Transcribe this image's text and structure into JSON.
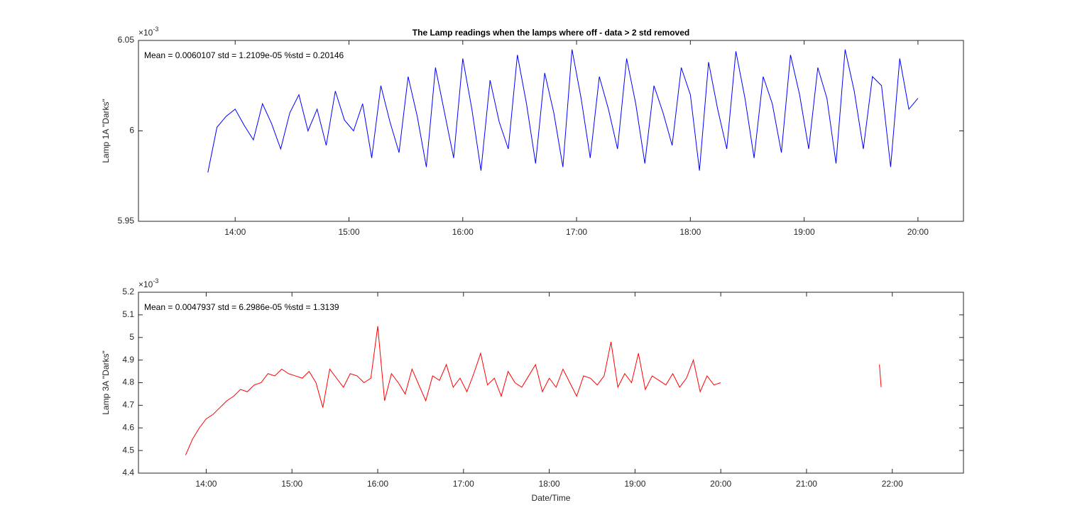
{
  "chart_data": [
    {
      "type": "line",
      "title": "The Lamp readings when the lamps where off - data > 2 std removed",
      "annotation": "Mean = 0.0060107  std = 1.2109e-05  %std = 0.20146",
      "y_label": "Lamp 1A \"Darks\"",
      "y_multiplier": {
        "base": "×10",
        "exponent": "-3"
      },
      "x": [
        13.76,
        13.84,
        13.92,
        14,
        14.08,
        14.16,
        14.24,
        14.32,
        14.4,
        14.48,
        14.56,
        14.64,
        14.72,
        14.8,
        14.88,
        14.96,
        15.04,
        15.12,
        15.2,
        15.28,
        15.36,
        15.44,
        15.52,
        15.6,
        15.68,
        15.76,
        15.84,
        15.92,
        16,
        16.08,
        16.16,
        16.24,
        16.32,
        16.4,
        16.48,
        16.56,
        16.64,
        16.72,
        16.8,
        16.88,
        16.96,
        17.04,
        17.12,
        17.2,
        17.28,
        17.36,
        17.44,
        17.52,
        17.6,
        17.68,
        17.76,
        17.84,
        17.92,
        18,
        18.08,
        18.16,
        18.24,
        18.32,
        18.4,
        18.48,
        18.56,
        18.64,
        18.72,
        18.8,
        18.88,
        18.96,
        19.04,
        19.12,
        19.2,
        19.28,
        19.36,
        19.44,
        19.52,
        19.6,
        19.68,
        19.76,
        19.84,
        19.92,
        20
      ],
      "series": [
        {
          "color": "#0000ff",
          "values": [
            5.977,
            6.002,
            6.008,
            6.012,
            6.003,
            5.995,
            6.015,
            6.004,
            5.99,
            6.01,
            6.02,
            6.0,
            6.012,
            5.992,
            6.022,
            6.006,
            6.0,
            6.015,
            5.985,
            6.025,
            6.005,
            5.988,
            6.03,
            6.008,
            5.98,
            6.035,
            6.01,
            5.985,
            6.04,
            6.012,
            5.978,
            6.028,
            6.005,
            5.99,
            6.042,
            6.015,
            5.982,
            6.032,
            6.01,
            5.98,
            6.045,
            6.018,
            5.985,
            6.03,
            6.012,
            5.99,
            6.04,
            6.015,
            5.982,
            6.025,
            6.01,
            5.992,
            6.035,
            6.02,
            5.978,
            6.038,
            6.012,
            5.99,
            6.044,
            6.018,
            5.985,
            6.03,
            6.015,
            5.988,
            6.042,
            6.02,
            5.99,
            6.035,
            6.018,
            5.982,
            6.045,
            6.022,
            5.99,
            6.03,
            6.025,
            5.98,
            6.04,
            6.012,
            6.018
          ]
        }
      ],
      "xlim": [
        13.15,
        20.4
      ],
      "xticks": [
        {
          "value": 14,
          "label": "14:00"
        },
        {
          "value": 15,
          "label": "15:00"
        },
        {
          "value": 16,
          "label": "16:00"
        },
        {
          "value": 17,
          "label": "17:00"
        },
        {
          "value": 18,
          "label": "18:00"
        },
        {
          "value": 19,
          "label": "19:00"
        },
        {
          "value": 20,
          "label": "20:00"
        }
      ],
      "ylim": [
        5.95,
        6.05
      ],
      "yticks": [
        5.95,
        6,
        6.05
      ],
      "grid": false
    },
    {
      "type": "line",
      "annotation": "Mean = 0.0047937  std = 6.2986e-05  %std = 1.3139",
      "y_label": "Lamp 3A \"Darks\"",
      "x_label": "Date/Time",
      "y_multiplier": {
        "base": "×10",
        "exponent": "-3"
      },
      "x": [
        13.76,
        13.84,
        13.92,
        14,
        14.08,
        14.16,
        14.24,
        14.32,
        14.4,
        14.48,
        14.56,
        14.64,
        14.72,
        14.8,
        14.88,
        14.96,
        15.04,
        15.12,
        15.2,
        15.28,
        15.36,
        15.44,
        15.52,
        15.6,
        15.68,
        15.76,
        15.84,
        15.92,
        16,
        16.08,
        16.16,
        16.24,
        16.32,
        16.4,
        16.48,
        16.56,
        16.64,
        16.72,
        16.8,
        16.88,
        16.96,
        17.04,
        17.12,
        17.2,
        17.28,
        17.36,
        17.44,
        17.52,
        17.6,
        17.68,
        17.76,
        17.84,
        17.92,
        18,
        18.08,
        18.16,
        18.24,
        18.32,
        18.4,
        18.48,
        18.56,
        18.64,
        18.72,
        18.8,
        18.88,
        18.96,
        19.04,
        19.12,
        19.2,
        19.28,
        19.36,
        19.44,
        19.52,
        19.6,
        19.68,
        19.76,
        19.84,
        19.92,
        20,
        20.9,
        21.85,
        21.87
      ],
      "series": [
        {
          "color": "#ff0000",
          "values": [
            4.48,
            4.55,
            4.6,
            4.64,
            4.66,
            4.69,
            4.72,
            4.74,
            4.77,
            4.76,
            4.79,
            4.8,
            4.84,
            4.83,
            4.86,
            4.84,
            4.83,
            4.82,
            4.85,
            4.8,
            4.69,
            4.86,
            4.82,
            4.78,
            4.84,
            4.83,
            4.8,
            4.82,
            5.05,
            4.72,
            4.84,
            4.8,
            4.75,
            4.86,
            4.79,
            4.72,
            4.83,
            4.81,
            4.88,
            4.78,
            4.82,
            4.76,
            4.84,
            4.93,
            4.79,
            4.82,
            4.74,
            4.85,
            4.8,
            4.78,
            4.83,
            4.88,
            4.76,
            4.82,
            4.78,
            4.86,
            4.8,
            4.74,
            4.83,
            4.82,
            4.79,
            4.83,
            4.98,
            4.78,
            4.84,
            4.8,
            4.93,
            4.77,
            4.83,
            4.81,
            4.79,
            4.84,
            4.78,
            4.82,
            4.9,
            4.76,
            4.83,
            4.79,
            4.8,
            null,
            4.88,
            4.78
          ]
        }
      ],
      "xlim": [
        13.21,
        22.83
      ],
      "xticks": [
        {
          "value": 14,
          "label": "14:00"
        },
        {
          "value": 15,
          "label": "15:00"
        },
        {
          "value": 16,
          "label": "16:00"
        },
        {
          "value": 17,
          "label": "17:00"
        },
        {
          "value": 18,
          "label": "18:00"
        },
        {
          "value": 19,
          "label": "19:00"
        },
        {
          "value": 20,
          "label": "20:00"
        },
        {
          "value": 21,
          "label": "21:00"
        },
        {
          "value": 22,
          "label": "22:00"
        }
      ],
      "ylim": [
        4.4,
        5.2
      ],
      "yticks": [
        4.4,
        4.5,
        4.6,
        4.7,
        4.8,
        4.9,
        5,
        5.1,
        5.2
      ],
      "grid": false
    }
  ]
}
